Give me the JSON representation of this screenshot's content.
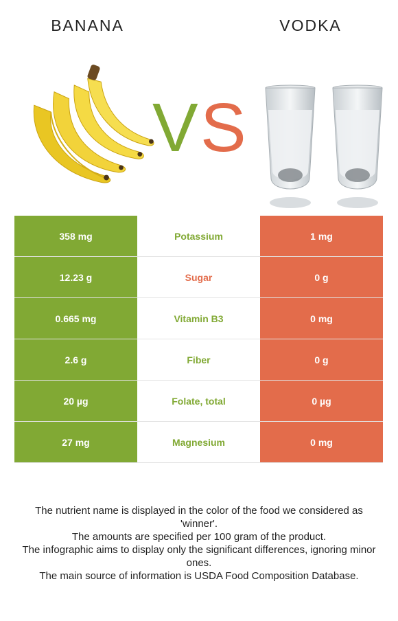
{
  "header": {
    "left_food": "BANANA",
    "right_food": "VODKA",
    "vs_label_v": "V",
    "vs_label_s": "S"
  },
  "colors": {
    "left_accent": "#81a934",
    "right_accent": "#e36c4b"
  },
  "rows": [
    {
      "left": "358 mg",
      "nutrient": "Potassium",
      "right": "1 mg",
      "winner": "left"
    },
    {
      "left": "12.23 g",
      "nutrient": "Sugar",
      "right": "0 g",
      "winner": "right"
    },
    {
      "left": "0.665 mg",
      "nutrient": "Vitamin B3",
      "right": "0 mg",
      "winner": "left"
    },
    {
      "left": "2.6 g",
      "nutrient": "Fiber",
      "right": "0 g",
      "winner": "left"
    },
    {
      "left": "20 µg",
      "nutrient": "Folate, total",
      "right": "0 µg",
      "winner": "left"
    },
    {
      "left": "27 mg",
      "nutrient": "Magnesium",
      "right": "0 mg",
      "winner": "left"
    }
  ],
  "footnotes": [
    "The nutrient name is displayed in the color of the food we considered as 'winner'.",
    "The amounts are specified per 100 gram of the product.",
    "The infographic aims to display only the significant differences, ignoring minor ones.",
    "The main source of information is USDA Food Composition Database."
  ]
}
